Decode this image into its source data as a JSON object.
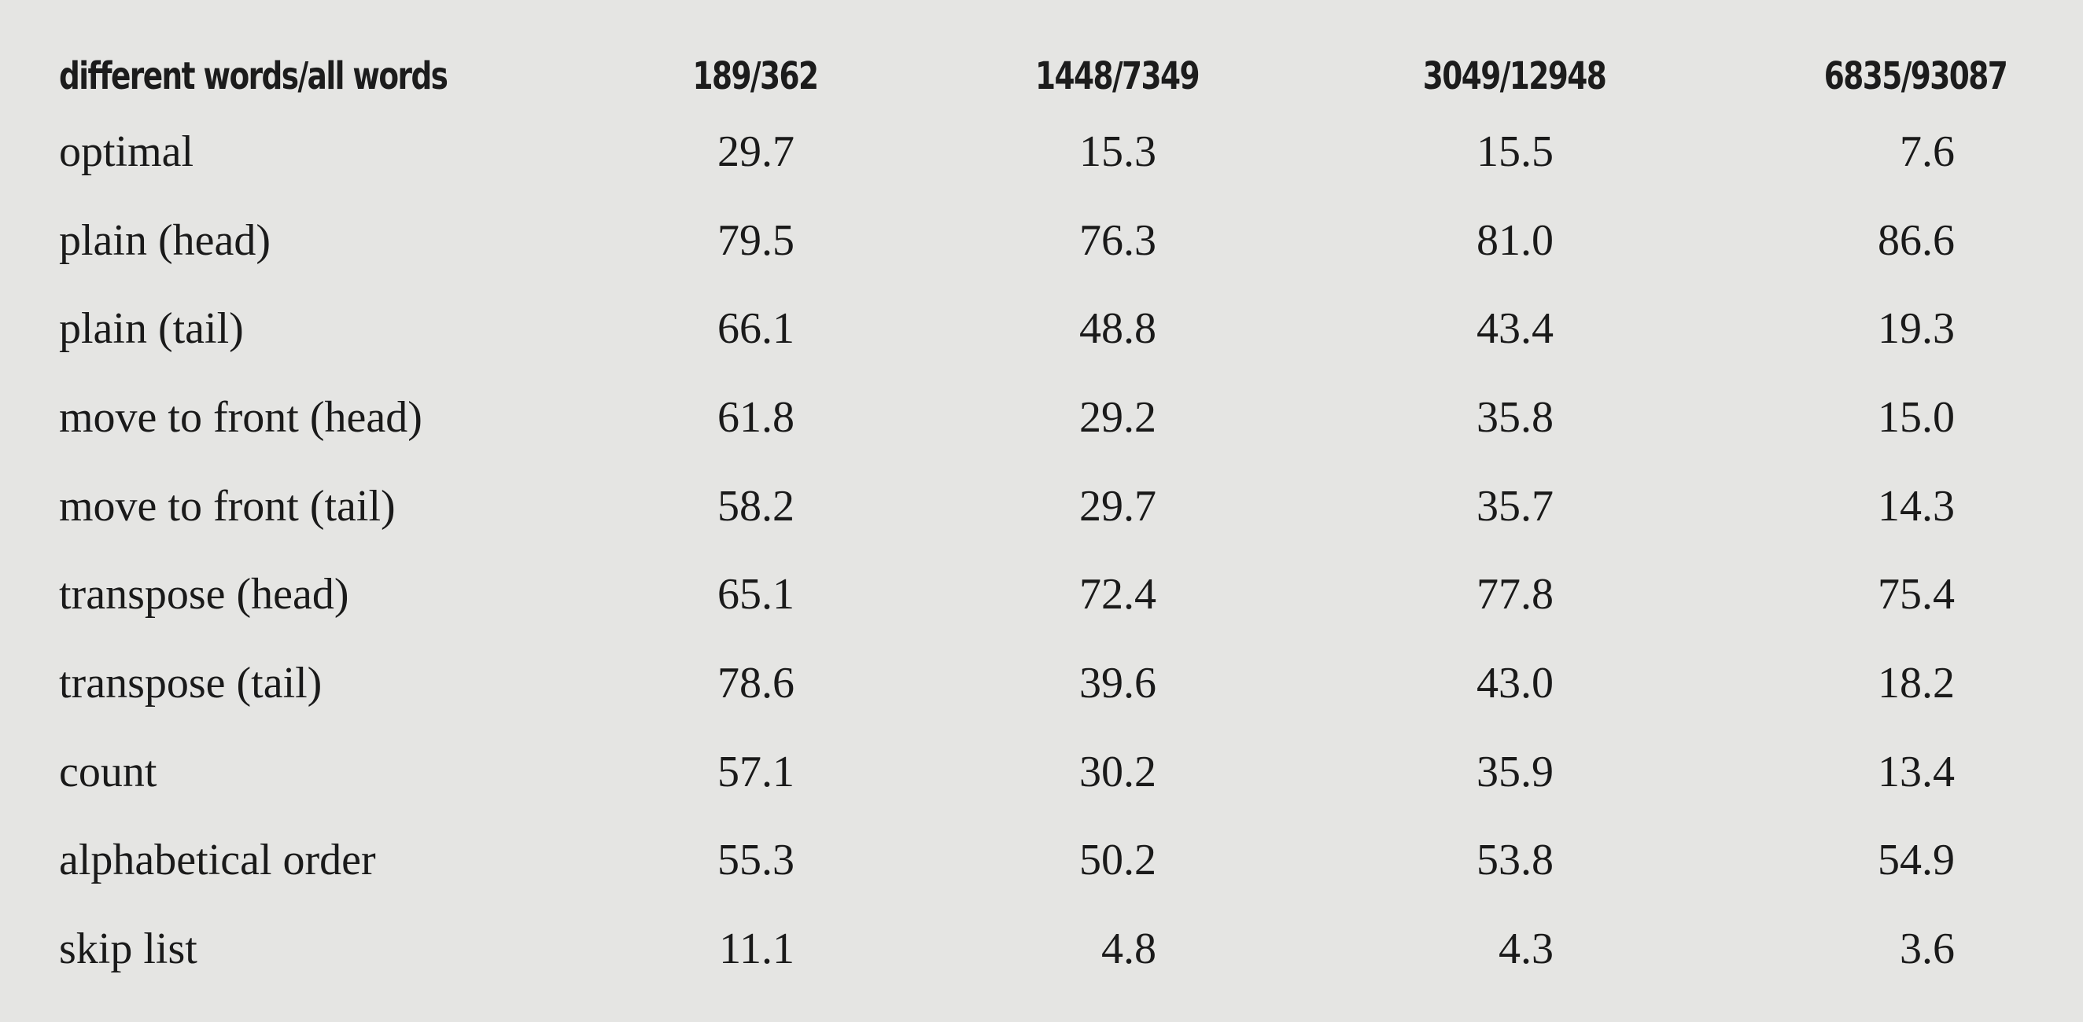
{
  "table": {
    "headers": [
      "different words/all words",
      "189/362",
      "1448/7349",
      "3049/12948",
      "6835/93087"
    ],
    "rows": [
      [
        "optimal",
        "29.7",
        "15.3",
        "15.5",
        "7.6"
      ],
      [
        "plain (head)",
        "79.5",
        "76.3",
        "81.0",
        "86.6"
      ],
      [
        "plain (tail)",
        "66.1",
        "48.8",
        "43.4",
        "19.3"
      ],
      [
        "move to front (head)",
        "61.8",
        "29.2",
        "35.8",
        "15.0"
      ],
      [
        "move to front (tail)",
        "58.2",
        "29.7",
        "35.7",
        "14.3"
      ],
      [
        "transpose (head)",
        "65.1",
        "72.4",
        "77.8",
        "75.4"
      ],
      [
        "transpose (tail)",
        "78.6",
        "39.6",
        "43.0",
        "18.2"
      ],
      [
        "count",
        "57.1",
        "30.2",
        "35.9",
        "13.4"
      ],
      [
        "alphabetical order",
        "55.3",
        "50.2",
        "53.8",
        "54.9"
      ],
      [
        "skip list",
        "11.1",
        "4.8",
        "4.3",
        "3.6"
      ]
    ]
  },
  "colors": {
    "background": "#e5e5e3",
    "text": "#1a1a1a"
  }
}
